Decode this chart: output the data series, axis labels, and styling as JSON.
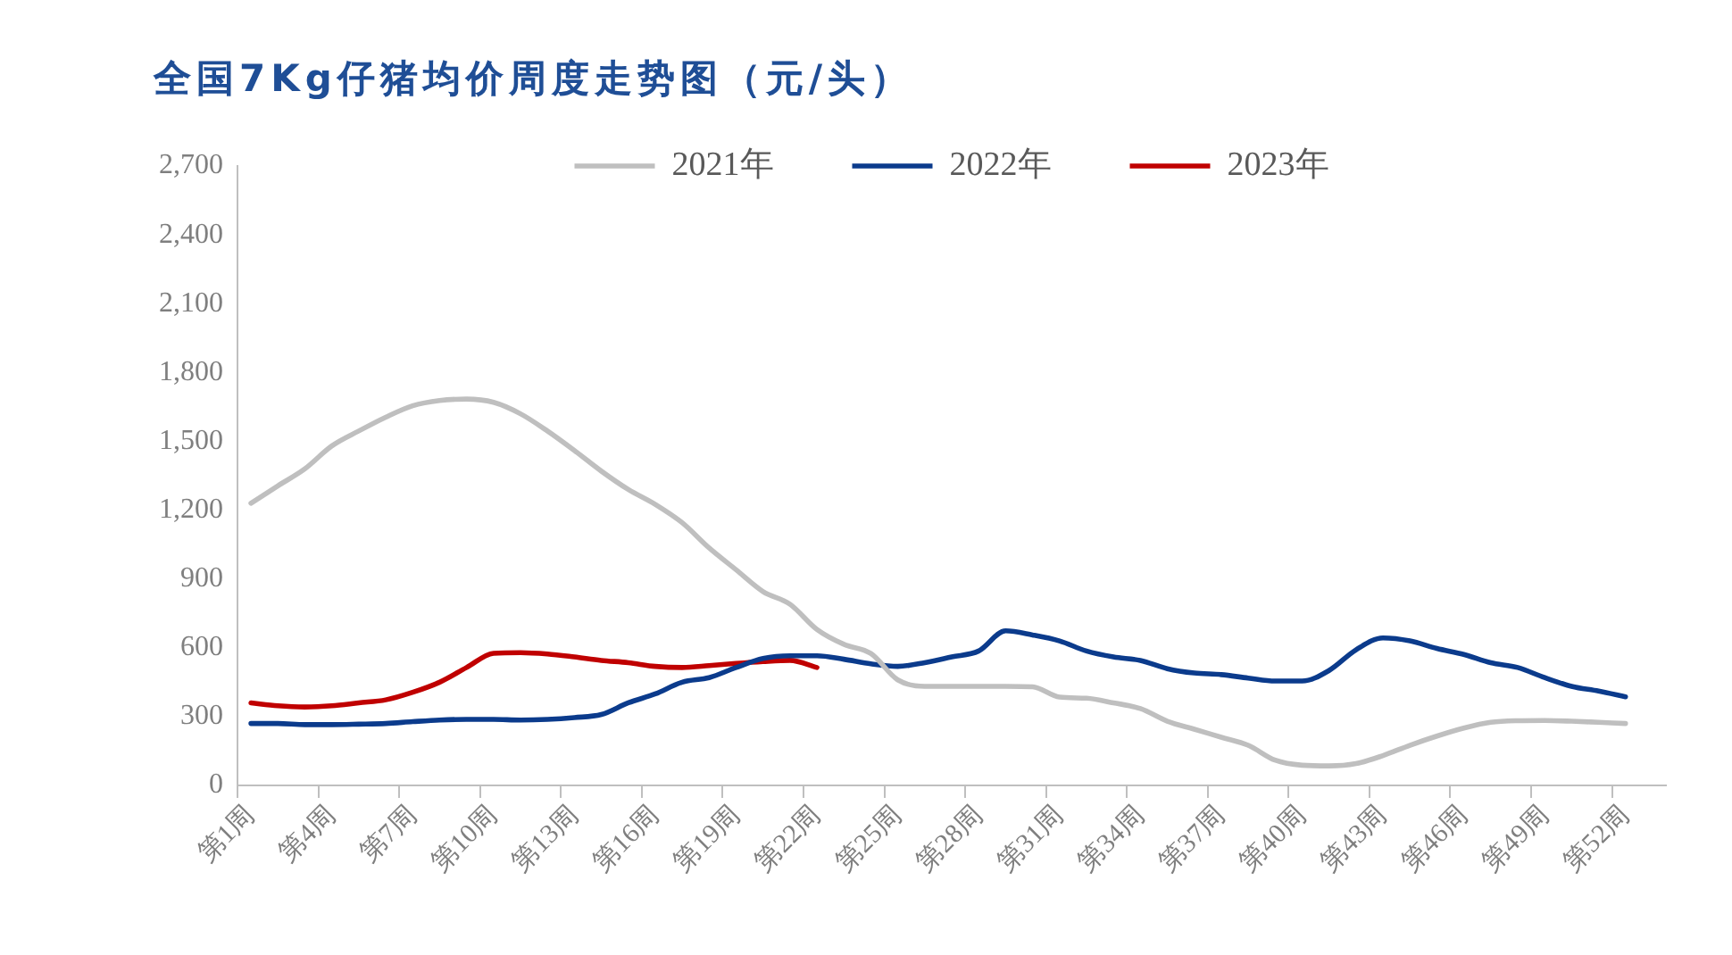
{
  "chart_data": {
    "type": "line",
    "title": "全国7Kg仔猪均价周度走势图（元/头）",
    "categories": [
      "第1周",
      null,
      null,
      "第4周",
      null,
      null,
      "第7周",
      null,
      null,
      "第10周",
      null,
      null,
      "第13周",
      null,
      null,
      "第16周",
      null,
      null,
      "第19周",
      null,
      null,
      "第22周",
      null,
      null,
      "第25周",
      null,
      null,
      "第28周",
      null,
      null,
      "第31周",
      null,
      null,
      "第34周",
      null,
      null,
      "第37周",
      null,
      null,
      "第40周",
      null,
      null,
      "第43周",
      null,
      null,
      "第46周",
      null,
      null,
      "第49周",
      null,
      null,
      "第52周",
      null
    ],
    "series": [
      {
        "name": "2021年",
        "color": "#bfbfbf",
        "values": [
          1230,
          1306,
          1380,
          1480,
          1545,
          1605,
          1655,
          1678,
          1684,
          1670,
          1620,
          1545,
          1460,
          1370,
          1290,
          1225,
          1145,
          1035,
          940,
          845,
          790,
          680,
          615,
          575,
          460,
          432,
          432,
          432,
          432,
          430,
          385,
          380,
          360,
          335,
          280,
          245,
          210,
          175,
          110,
          88,
          85,
          95,
          130,
          175,
          215,
          250,
          275,
          282,
          283,
          280,
          275,
          270,
          null
        ]
      },
      {
        "name": "2022年",
        "color": "#0b3b8c",
        "values": [
          270,
          270,
          265,
          265,
          267,
          270,
          278,
          285,
          288,
          288,
          285,
          288,
          296,
          309,
          360,
          399,
          450,
          470,
          514,
          553,
          565,
          565,
          550,
          530,
          519,
          535,
          560,
          586,
          674,
          656,
          630,
          586,
          560,
          545,
          509,
          490,
          483,
          468,
          455,
          455,
          501,
          591,
          643,
          630,
          597,
          571,
          535,
          514,
          470,
          432,
          411,
          386,
          null
        ]
      },
      {
        "name": "2023年",
        "color": "#c00000",
        "values": [
          360,
          347,
          342,
          347,
          360,
          373,
          406,
          450,
          514,
          576,
          579,
          573,
          560,
          545,
          535,
          519,
          514,
          522,
          532,
          540,
          545,
          514,
          null,
          null,
          null,
          null,
          null,
          null,
          null,
          null,
          null,
          null,
          null,
          null,
          null,
          null,
          null,
          null,
          null,
          null,
          null,
          null,
          null,
          null,
          null,
          null,
          null,
          null,
          null,
          null,
          null,
          null,
          null
        ]
      }
    ],
    "ylim": [
      0,
      2700
    ],
    "yticks": [
      0,
      300,
      600,
      900,
      {
        "value": 1200,
        "label": "1,200"
      },
      {
        "value": 1500,
        "label": "1,500"
      },
      {
        "value": 1800,
        "label": "1,800"
      },
      {
        "value": 2100,
        "label": "2,100"
      },
      {
        "value": 2400,
        "label": "2,400"
      },
      {
        "value": 2700,
        "label": "2,700"
      }
    ],
    "grid": false,
    "legend": "top",
    "marker": "none"
  }
}
